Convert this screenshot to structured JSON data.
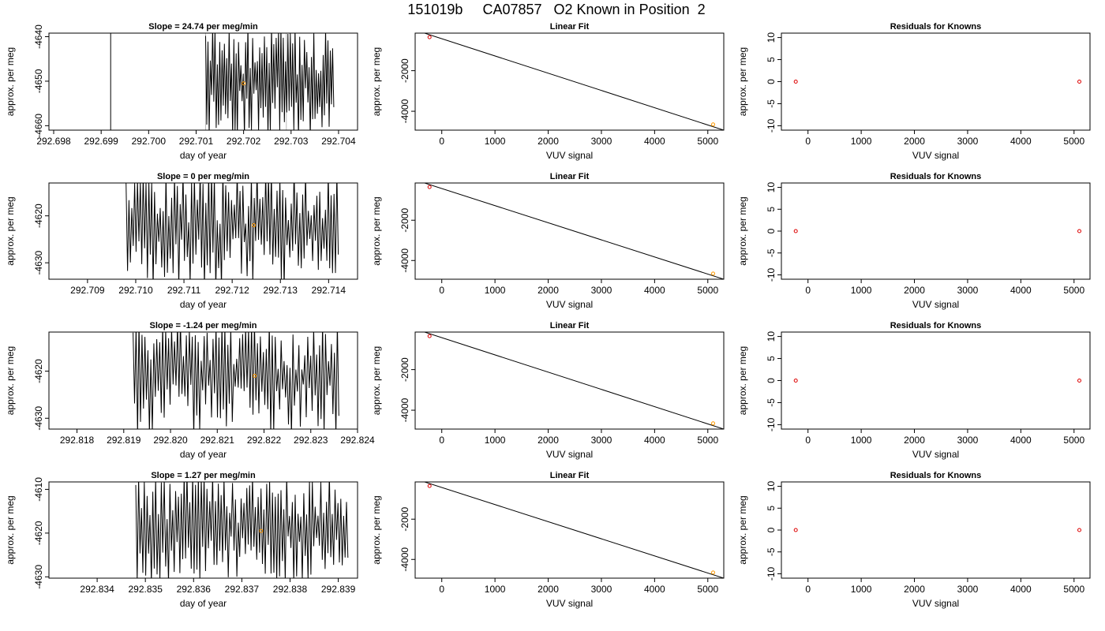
{
  "page_title": "151019b     CA07857   O2 Known in Position  2",
  "colors": {
    "trace": "#000000",
    "marker_orange": "#ff9900",
    "marker_red": "#dd0000",
    "fit_line": "#000000",
    "frame": "#000000",
    "gray_line": "#bbbbbb"
  },
  "chart_data": [
    {
      "id": "r1-trace",
      "type": "line",
      "title": "Slope =  24.74  per meg/min",
      "xlabel": "day of year",
      "ylabel": "approx. per meg",
      "xlim": [
        292.6979,
        292.7044
      ],
      "ylim": [
        -4661,
        -4639.2
      ],
      "xticks": [
        "292.698",
        "292.699",
        "292.700",
        "292.701",
        "292.702",
        "292.703",
        "292.704"
      ],
      "xtick_values": [
        292.698,
        292.699,
        292.7,
        292.701,
        292.702,
        292.703,
        292.704
      ],
      "yticks": [
        "-4640",
        "-4650",
        "-4660"
      ],
      "ytick_values": [
        -4640,
        -4650,
        -4660
      ],
      "trace": {
        "x_start": 292.7012,
        "x_end": 292.7039,
        "y_low": -4663,
        "y_high": -4637,
        "points": 110,
        "seed": 11
      },
      "pre_segments": [
        {
          "x": 292.6992,
          "y_low": -4663,
          "y_high": -4637
        }
      ],
      "gray_lines": [
        292.7012,
        292.7029
      ],
      "marker": {
        "x": 292.702,
        "y": -4650.5
      }
    },
    {
      "id": "r1-fit",
      "type": "scatter",
      "title": "Linear Fit",
      "xlabel": "VUV signal",
      "ylabel": "approx. per meg",
      "xlim": [
        -500,
        5300
      ],
      "ylim": [
        -4930,
        -150
      ],
      "xticks": [
        "0",
        "1000",
        "2000",
        "3000",
        "4000",
        "5000"
      ],
      "xtick_values": [
        0,
        1000,
        2000,
        3000,
        4000,
        5000
      ],
      "yticks": [
        "-2000",
        "-4000"
      ],
      "ytick_values": [
        -2000,
        -4000
      ],
      "fit_line": [
        [
          -500,
          0
        ],
        [
          5300,
          -4930
        ]
      ],
      "points": [
        {
          "x": -230,
          "y": -350,
          "color": "red"
        },
        {
          "x": 5100,
          "y": -4650,
          "color": "orange"
        }
      ]
    },
    {
      "id": "r1-resid",
      "type": "scatter",
      "title": "Residuals for Knowns",
      "xlabel": "VUV signal",
      "ylabel": "approx. per meg",
      "xlim": [
        -500,
        5300
      ],
      "ylim": [
        -11,
        11
      ],
      "xticks": [
        "0",
        "1000",
        "2000",
        "3000",
        "4000",
        "5000"
      ],
      "xtick_values": [
        0,
        1000,
        2000,
        3000,
        4000,
        5000
      ],
      "yticks": [
        "10",
        "5",
        "0",
        "-5",
        "-10"
      ],
      "ytick_values": [
        10,
        5,
        0,
        -5,
        -10
      ],
      "points": [
        {
          "x": -230,
          "y": 0,
          "color": "red"
        },
        {
          "x": 5100,
          "y": 0,
          "color": "red"
        }
      ]
    },
    {
      "id": "r2-trace",
      "type": "line",
      "title": "Slope =  0  per meg/min",
      "xlabel": "day of year",
      "ylabel": "approx. per meg",
      "xlim": [
        292.7082,
        292.7146
      ],
      "ylim": [
        -4633.5,
        -4613
      ],
      "xticks": [
        "292.709",
        "292.710",
        "292.711",
        "292.712",
        "292.713",
        "292.714"
      ],
      "xtick_values": [
        292.709,
        292.71,
        292.711,
        292.712,
        292.713,
        292.714
      ],
      "yticks": [
        "-4620",
        "-4630"
      ],
      "ytick_values": [
        -4620,
        -4630
      ],
      "trace": {
        "x_start": 292.7098,
        "x_end": 292.7142,
        "y_low": -4636,
        "y_high": -4610,
        "points": 150,
        "seed": 23
      },
      "pre_segments": [],
      "gray_lines": [],
      "marker": {
        "x": 292.71245,
        "y": -4622
      }
    },
    {
      "id": "r2-fit",
      "type": "scatter",
      "title": "Linear Fit",
      "xlabel": "VUV signal",
      "ylabel": "approx. per meg",
      "xlim": [
        -500,
        5300
      ],
      "ylim": [
        -4930,
        -150
      ],
      "xticks": [
        "0",
        "1000",
        "2000",
        "3000",
        "4000",
        "5000"
      ],
      "xtick_values": [
        0,
        1000,
        2000,
        3000,
        4000,
        5000
      ],
      "yticks": [
        "-2000",
        "-4000"
      ],
      "ytick_values": [
        -2000,
        -4000
      ],
      "fit_line": [
        [
          -500,
          0
        ],
        [
          5300,
          -4930
        ]
      ],
      "points": [
        {
          "x": -230,
          "y": -350,
          "color": "red"
        },
        {
          "x": 5100,
          "y": -4650,
          "color": "orange"
        }
      ]
    },
    {
      "id": "r2-resid",
      "type": "scatter",
      "title": "Residuals for Knowns",
      "xlabel": "VUV signal",
      "ylabel": "approx. per meg",
      "xlim": [
        -500,
        5300
      ],
      "ylim": [
        -11,
        11
      ],
      "xticks": [
        "0",
        "1000",
        "2000",
        "3000",
        "4000",
        "5000"
      ],
      "xtick_values": [
        0,
        1000,
        2000,
        3000,
        4000,
        5000
      ],
      "yticks": [
        "10",
        "5",
        "0",
        "-5",
        "-10"
      ],
      "ytick_values": [
        10,
        5,
        0,
        -5,
        -10
      ],
      "points": [
        {
          "x": -230,
          "y": 0,
          "color": "red"
        },
        {
          "x": 5100,
          "y": 0,
          "color": "red"
        }
      ]
    },
    {
      "id": "r3-trace",
      "type": "line",
      "title": "Slope =  -1.24  per meg/min",
      "xlabel": "day of year",
      "ylabel": "approx. per meg",
      "xlim": [
        292.8174,
        292.824
      ],
      "ylim": [
        -4632.3,
        -4611.7
      ],
      "xticks": [
        "292.818",
        "292.819",
        "292.820",
        "292.821",
        "292.822",
        "292.823",
        "292.824"
      ],
      "xtick_values": [
        292.818,
        292.819,
        292.82,
        292.821,
        292.822,
        292.823,
        292.824
      ],
      "yticks": [
        "-4620",
        "-4630"
      ],
      "ytick_values": [
        -4620,
        -4630
      ],
      "trace": {
        "x_start": 292.8192,
        "x_end": 292.8236,
        "y_low": -4634,
        "y_high": -4609,
        "points": 140,
        "seed": 37
      },
      "pre_segments": [],
      "gray_lines": [],
      "marker": {
        "x": 292.8218,
        "y": -4621
      }
    },
    {
      "id": "r3-fit",
      "type": "scatter",
      "title": "Linear Fit",
      "xlabel": "VUV signal",
      "ylabel": "approx. per meg",
      "xlim": [
        -500,
        5300
      ],
      "ylim": [
        -4930,
        -150
      ],
      "xticks": [
        "0",
        "1000",
        "2000",
        "3000",
        "4000",
        "5000"
      ],
      "xtick_values": [
        0,
        1000,
        2000,
        3000,
        4000,
        5000
      ],
      "yticks": [
        "-2000",
        "-4000"
      ],
      "ytick_values": [
        -2000,
        -4000
      ],
      "fit_line": [
        [
          -500,
          0
        ],
        [
          5300,
          -4930
        ]
      ],
      "points": [
        {
          "x": -230,
          "y": -350,
          "color": "red"
        },
        {
          "x": 5100,
          "y": -4650,
          "color": "orange"
        }
      ]
    },
    {
      "id": "r3-resid",
      "type": "scatter",
      "title": "Residuals for Knowns",
      "xlabel": "VUV signal",
      "ylabel": "approx. per meg",
      "xlim": [
        -500,
        5300
      ],
      "ylim": [
        -11,
        11
      ],
      "xticks": [
        "0",
        "1000",
        "2000",
        "3000",
        "4000",
        "5000"
      ],
      "xtick_values": [
        0,
        1000,
        2000,
        3000,
        4000,
        5000
      ],
      "yticks": [
        "10",
        "5",
        "0",
        "-5",
        "-10"
      ],
      "ytick_values": [
        10,
        5,
        0,
        -5,
        -10
      ],
      "points": [
        {
          "x": -230,
          "y": 0,
          "color": "red"
        },
        {
          "x": 5100,
          "y": 0,
          "color": "red"
        }
      ]
    },
    {
      "id": "r4-trace",
      "type": "line",
      "title": "Slope =  1.27  per meg/min",
      "xlabel": "day of year",
      "ylabel": "approx. per meg",
      "xlim": [
        292.833,
        292.8394
      ],
      "ylim": [
        -4630.3,
        -4608.3
      ],
      "xticks": [
        "292.834",
        "292.835",
        "292.836",
        "292.837",
        "292.838",
        "292.839"
      ],
      "xtick_values": [
        292.834,
        292.835,
        292.836,
        292.837,
        292.838,
        292.839
      ],
      "yticks": [
        "-4610",
        "-4620",
        "-4630"
      ],
      "ytick_values": [
        -4610,
        -4620,
        -4630
      ],
      "trace": {
        "x_start": 292.8348,
        "x_end": 292.8392,
        "y_low": -4632,
        "y_high": -4606,
        "points": 150,
        "seed": 53
      },
      "pre_segments": [],
      "gray_lines": [],
      "marker": {
        "x": 292.8374,
        "y": -4619.5
      }
    },
    {
      "id": "r4-fit",
      "type": "scatter",
      "title": "Linear Fit",
      "xlabel": "VUV signal",
      "ylabel": "approx. per meg",
      "xlim": [
        -500,
        5300
      ],
      "ylim": [
        -4930,
        -150
      ],
      "xticks": [
        "0",
        "1000",
        "2000",
        "3000",
        "4000",
        "5000"
      ],
      "xtick_values": [
        0,
        1000,
        2000,
        3000,
        4000,
        5000
      ],
      "yticks": [
        "-2000",
        "-4000"
      ],
      "ytick_values": [
        -2000,
        -4000
      ],
      "fit_line": [
        [
          -500,
          0
        ],
        [
          5300,
          -4930
        ]
      ],
      "points": [
        {
          "x": -230,
          "y": -350,
          "color": "red"
        },
        {
          "x": 5100,
          "y": -4650,
          "color": "orange"
        }
      ]
    },
    {
      "id": "r4-resid",
      "type": "scatter",
      "title": "Residuals for Knowns",
      "xlabel": "VUV signal",
      "ylabel": "approx. per meg",
      "xlim": [
        -500,
        5300
      ],
      "ylim": [
        -11,
        11
      ],
      "xticks": [
        "0",
        "1000",
        "2000",
        "3000",
        "4000",
        "5000"
      ],
      "xtick_values": [
        0,
        1000,
        2000,
        3000,
        4000,
        5000
      ],
      "yticks": [
        "10",
        "5",
        "0",
        "-5",
        "-10"
      ],
      "ytick_values": [
        10,
        5,
        0,
        -5,
        -10
      ],
      "points": [
        {
          "x": -230,
          "y": 0,
          "color": "red"
        },
        {
          "x": 5100,
          "y": 0,
          "color": "red"
        }
      ]
    }
  ]
}
